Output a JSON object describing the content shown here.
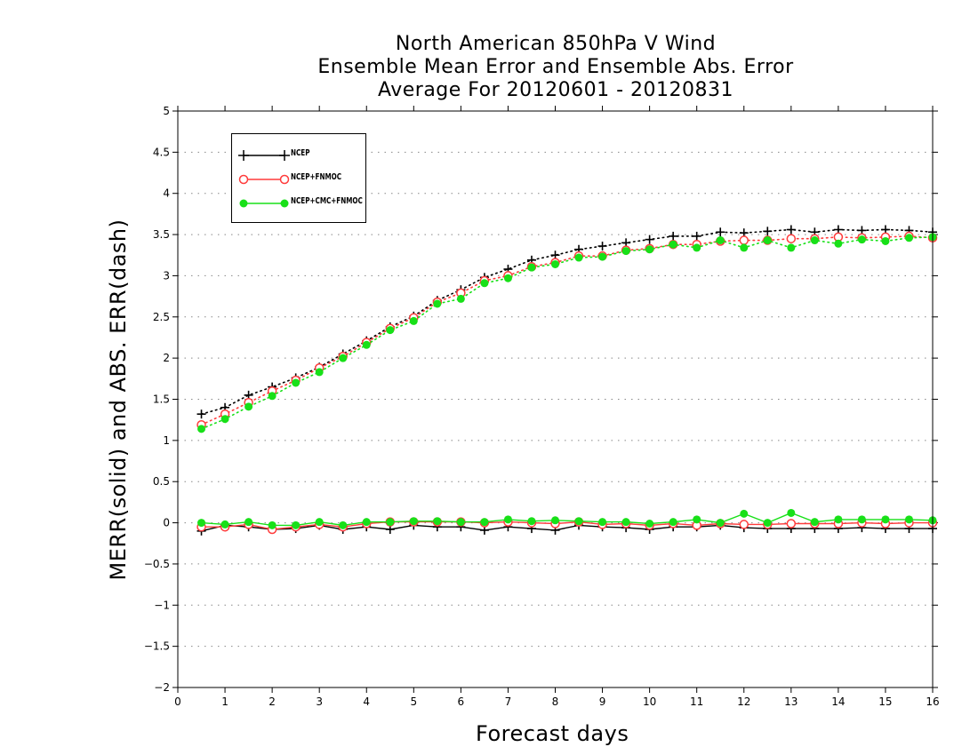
{
  "chart_data": {
    "type": "line",
    "title": [
      "North American 850hPa V Wind",
      "Ensemble Mean Error and Ensemble Abs. Error",
      "Average For 20120601 - 20120831"
    ],
    "xlabel": "Forecast days",
    "ylabel": "MERR(solid) and ABS. ERR(dash)",
    "xlim": [
      0,
      16
    ],
    "ylim": [
      -2,
      5
    ],
    "x_ticks": [
      "0",
      "1",
      "2",
      "3",
      "4",
      "5",
      "6",
      "7",
      "8",
      "9",
      "10",
      "11",
      "12",
      "13",
      "14",
      "15",
      "16"
    ],
    "y_ticks": [
      "5",
      "4.5",
      "4",
      "3.5",
      "3",
      "2.5",
      "2",
      "1.5",
      "1",
      "0.5",
      "0",
      "−0.5",
      "−1",
      "−1.5",
      "−2"
    ],
    "y_tick_values": [
      5,
      4.5,
      4,
      3.5,
      3,
      2.5,
      2,
      1.5,
      1,
      0.5,
      0,
      -0.5,
      -1,
      -1.5,
      -2
    ],
    "grid": "horizontal dotted",
    "legend_position": "top-left",
    "x": [
      0.5,
      1,
      1.5,
      2,
      2.5,
      3,
      3.5,
      4,
      4.5,
      5,
      5.5,
      6,
      6.5,
      7,
      7.5,
      8,
      8.5,
      9,
      9.5,
      10,
      10.5,
      11,
      11.5,
      12,
      12.5,
      13,
      13.5,
      14,
      14.5,
      15,
      15.5,
      16
    ],
    "series": [
      {
        "name": "NCEP",
        "color": "#000000",
        "marker": "plus",
        "abs_error": [
          1.32,
          1.4,
          1.55,
          1.65,
          1.76,
          1.89,
          2.05,
          2.21,
          2.38,
          2.51,
          2.7,
          2.83,
          2.98,
          3.08,
          3.19,
          3.25,
          3.32,
          3.36,
          3.4,
          3.44,
          3.48,
          3.48,
          3.53,
          3.52,
          3.54,
          3.56,
          3.53,
          3.56,
          3.55,
          3.56,
          3.55,
          3.53
        ],
        "mean_error": [
          -0.1,
          -0.03,
          -0.05,
          -0.08,
          -0.07,
          -0.03,
          -0.08,
          -0.05,
          -0.08,
          -0.03,
          -0.05,
          -0.05,
          -0.09,
          -0.05,
          -0.07,
          -0.09,
          -0.03,
          -0.05,
          -0.06,
          -0.08,
          -0.05,
          -0.05,
          -0.03,
          -0.06,
          -0.07,
          -0.07,
          -0.07,
          -0.07,
          -0.06,
          -0.07,
          -0.07,
          -0.07
        ]
      },
      {
        "name": "NCEP+FNMOC",
        "color": "#ff3b3b",
        "marker": "open-circle",
        "abs_error": [
          1.19,
          1.32,
          1.46,
          1.6,
          1.73,
          1.88,
          2.02,
          2.19,
          2.36,
          2.49,
          2.68,
          2.79,
          2.94,
          3.0,
          3.11,
          3.16,
          3.24,
          3.24,
          3.31,
          3.33,
          3.38,
          3.38,
          3.42,
          3.43,
          3.43,
          3.45,
          3.45,
          3.47,
          3.46,
          3.47,
          3.48,
          3.46
        ],
        "mean_error": [
          -0.05,
          -0.05,
          -0.02,
          -0.08,
          -0.05,
          -0.02,
          -0.05,
          -0.01,
          0.01,
          0.01,
          0.01,
          0.01,
          0.0,
          0.01,
          0.0,
          -0.01,
          0.01,
          -0.02,
          -0.01,
          -0.03,
          -0.01,
          -0.03,
          -0.01,
          -0.02,
          -0.02,
          -0.01,
          -0.01,
          -0.01,
          0.0,
          -0.01,
          0.0,
          0.0
        ]
      },
      {
        "name": "NCEP+CMC+FNMOC",
        "color": "#18e018",
        "marker": "filled-circle",
        "abs_error": [
          1.14,
          1.26,
          1.41,
          1.54,
          1.7,
          1.83,
          2.0,
          2.16,
          2.34,
          2.45,
          2.66,
          2.72,
          2.91,
          2.97,
          3.1,
          3.14,
          3.22,
          3.23,
          3.3,
          3.32,
          3.38,
          3.34,
          3.43,
          3.34,
          3.43,
          3.34,
          3.43,
          3.39,
          3.44,
          3.42,
          3.46,
          3.47
        ],
        "mean_error": [
          0.0,
          -0.02,
          0.01,
          -0.03,
          -0.03,
          0.01,
          -0.03,
          0.01,
          0.01,
          0.02,
          0.02,
          0.01,
          0.01,
          0.04,
          0.02,
          0.03,
          0.02,
          0.01,
          0.01,
          -0.01,
          0.01,
          0.04,
          0.0,
          0.11,
          0.0,
          0.12,
          0.01,
          0.04,
          0.04,
          0.04,
          0.04,
          0.03
        ]
      }
    ]
  }
}
